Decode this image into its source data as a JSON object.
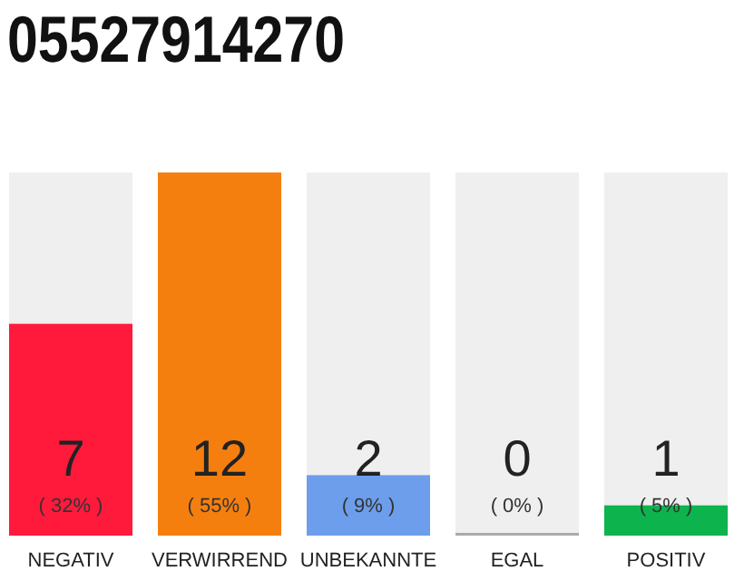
{
  "chart_data": {
    "type": "bar",
    "title": "05527914270",
    "categories": [
      "NEGATIV",
      "VERWIRREND",
      "UNBEKANNTE",
      "EGAL",
      "POSITIV"
    ],
    "values": [
      7,
      12,
      2,
      0,
      1
    ],
    "colors": [
      "#ff1a3c",
      "#f57f0e",
      "#6d9eeb",
      "#aaaaaa",
      "#0db34c"
    ],
    "value_labels": [
      "7\n( 32% )",
      "12\n( 55% )",
      "2\n( 9% )",
      "0\n( 0% )",
      "1\n( 5% )"
    ]
  }
}
